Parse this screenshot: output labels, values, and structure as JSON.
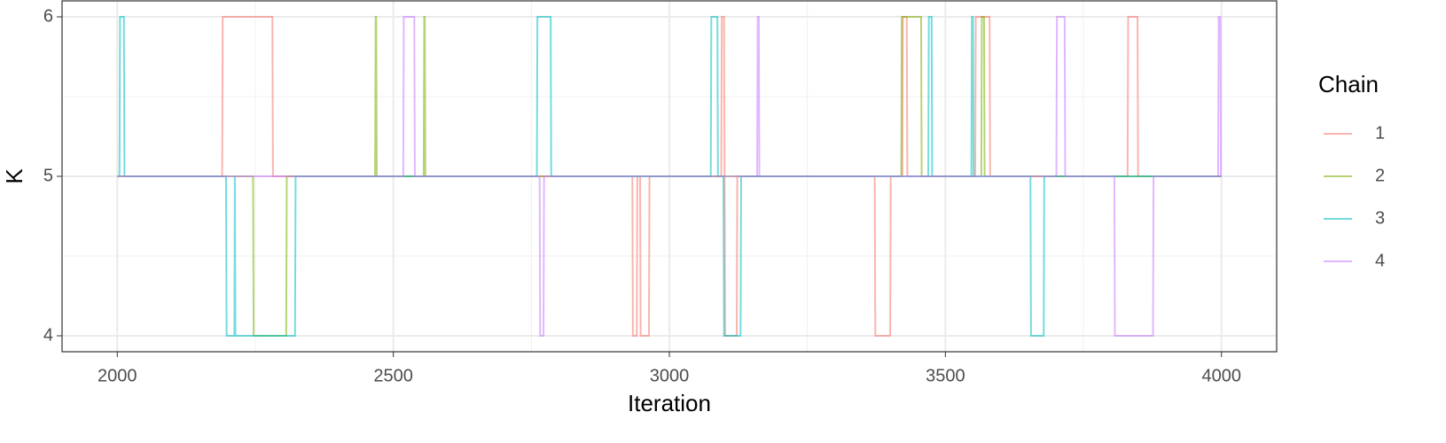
{
  "chart_data": {
    "type": "line",
    "x_label": "Iteration",
    "y_label": "K",
    "legend_title": "Chain",
    "xlim": [
      1900,
      4100
    ],
    "xticks": [
      2000,
      2500,
      3000,
      3500,
      4000
    ],
    "x_minor_ticks": [
      2250,
      2750,
      3250,
      3750
    ],
    "ylim": [
      3.9,
      6.1
    ],
    "yticks": [
      4,
      5,
      6
    ],
    "y_minor_ticks": [
      4.5,
      5.5
    ],
    "grid": true,
    "legend": "right",
    "opacity": 0.55,
    "series": [
      {
        "name": "1",
        "color": "#F8766D",
        "x": [
          2000,
          2190,
          2191,
          2281,
          2282,
          2933,
          2934,
          2941,
          2942,
          2947,
          2948,
          2963,
          2964,
          3094,
          3095,
          3099,
          3100,
          3101,
          3122,
          3123,
          3372,
          3373,
          3400,
          3401,
          3422,
          3423,
          3430,
          3431,
          3554,
          3555,
          3580,
          3581,
          3830,
          3831,
          3848,
          3849,
          4000
        ],
        "values": [
          5,
          5,
          6,
          6,
          5,
          5,
          4,
          4,
          5,
          5,
          4,
          4,
          5,
          5,
          6,
          6,
          5,
          4,
          4,
          5,
          5,
          4,
          4,
          5,
          5,
          6,
          6,
          5,
          5,
          6,
          6,
          5,
          5,
          6,
          6,
          5,
          5
        ]
      },
      {
        "name": "2",
        "color": "#7CAE00",
        "x": [
          2000,
          2246,
          2247,
          2306,
          2307,
          2467,
          2468,
          2469,
          2470,
          2555,
          2556,
          2557,
          2558,
          3420,
          3421,
          3456,
          3457,
          3565,
          3566,
          3570,
          3571,
          4000
        ],
        "values": [
          5,
          5,
          4,
          4,
          5,
          5,
          6,
          6,
          5,
          5,
          6,
          6,
          5,
          5,
          6,
          6,
          5,
          5,
          6,
          6,
          5,
          5
        ]
      },
      {
        "name": "3",
        "color": "#00BFC4",
        "x": [
          2000,
          2004,
          2005,
          2012,
          2013,
          2197,
          2198,
          2212,
          2213,
          2214,
          2322,
          2323,
          2760,
          2761,
          2785,
          2786,
          3075,
          3076,
          3087,
          3088,
          3098,
          3099,
          3129,
          3130,
          3469,
          3470,
          3475,
          3476,
          3547,
          3548,
          3550,
          3551,
          3654,
          3655,
          3678,
          3679,
          4000
        ],
        "values": [
          5,
          5,
          6,
          6,
          5,
          5,
          4,
          4,
          5,
          4,
          4,
          5,
          5,
          6,
          6,
          5,
          5,
          6,
          6,
          5,
          5,
          4,
          4,
          5,
          5,
          6,
          6,
          5,
          5,
          6,
          6,
          5,
          5,
          4,
          4,
          5,
          5
        ]
      },
      {
        "name": "4",
        "color": "#C77CFF",
        "x": [
          2000,
          2518,
          2519,
          2538,
          2539,
          2765,
          2766,
          2772,
          2773,
          3159,
          3160,
          3162,
          3163,
          3701,
          3702,
          3716,
          3717,
          3806,
          3807,
          3876,
          3877,
          3994,
          3995,
          3998,
          3999,
          4000
        ],
        "values": [
          5,
          5,
          6,
          6,
          5,
          5,
          4,
          4,
          5,
          5,
          6,
          6,
          5,
          5,
          6,
          6,
          5,
          5,
          4,
          4,
          5,
          5,
          6,
          6,
          5,
          5
        ]
      }
    ]
  }
}
